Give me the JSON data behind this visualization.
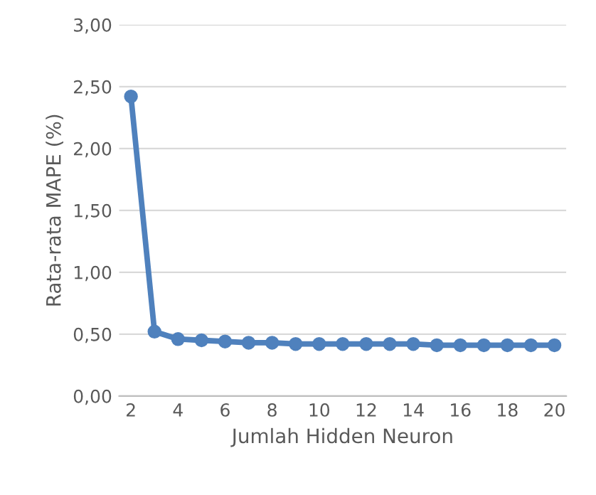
{
  "chart_data": {
    "type": "line",
    "xlabel": "Jumlah Hidden Neuron",
    "ylabel": "Rata-rata MAPE (%)",
    "categories": [
      "2",
      null,
      "4",
      null,
      "6",
      null,
      "8",
      null,
      "10",
      null,
      "12",
      null,
      "14",
      null,
      "16",
      null,
      "18",
      null,
      "20"
    ],
    "series": [
      {
        "color": "#4f81bd",
        "values": [
          2.42,
          0.52,
          0.46,
          0.45,
          0.44,
          0.43,
          0.43,
          0.42,
          0.42,
          0.42,
          0.42,
          0.42,
          0.42,
          0.41,
          0.41,
          0.41,
          0.41,
          0.41,
          0.41
        ]
      }
    ],
    "ylim": [
      0,
      3
    ],
    "yticks": [
      {
        "value": 0,
        "label": "0,00"
      },
      {
        "value": 0.5,
        "label": "0,50"
      },
      {
        "value": 1,
        "label": "1,00"
      },
      {
        "value": 1.5,
        "label": "1,50"
      },
      {
        "value": 2,
        "label": "2,00"
      },
      {
        "value": 2.5,
        "label": "2,50"
      },
      {
        "value": 3,
        "label": "3,00"
      }
    ],
    "grid": "y",
    "marker": "circle",
    "line_style": "solid",
    "legend": false
  }
}
